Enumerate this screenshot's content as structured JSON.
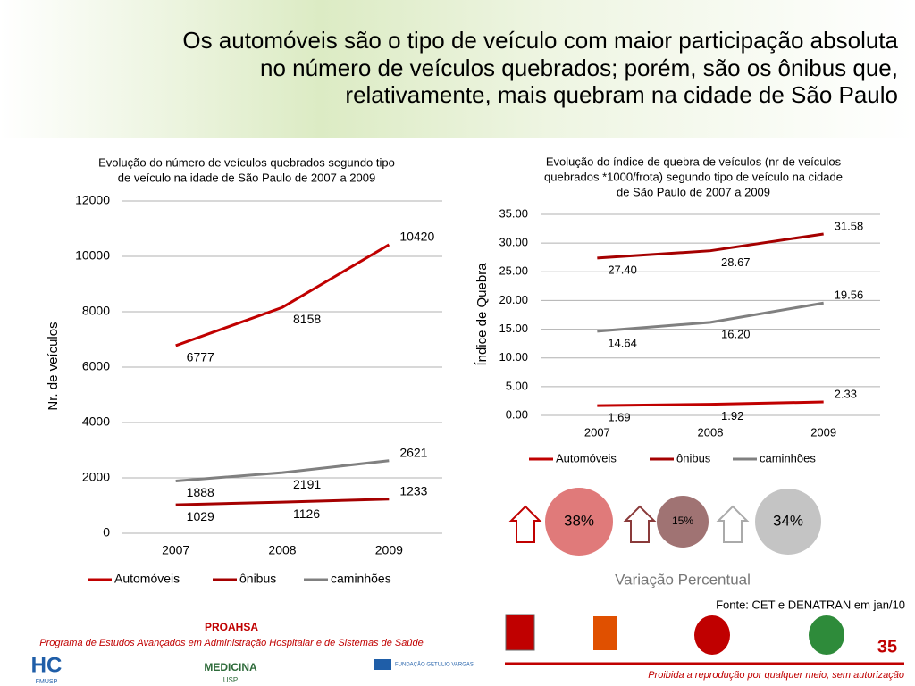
{
  "header": {
    "title": [
      "Os automóveis são o tipo de veículo com maior participação absoluta",
      "no número de veículos quebrados; porém, são os ônibus que,",
      "relativamente, mais quebram na cidade de São Paulo"
    ]
  },
  "chart_data": [
    {
      "type": "line",
      "title": [
        "Evolução do número de veículos quebrados segundo tipo",
        "de veículo na idade de São Paulo de 2007 a 2009"
      ],
      "ylabel": "Nr. de veículos",
      "categories": [
        "2007",
        "2008",
        "2009"
      ],
      "series": [
        {
          "name": "Automóveis",
          "color": "#c00000",
          "values": [
            6777,
            8158,
            10420
          ]
        },
        {
          "name": "ônibus",
          "color": "#a50000",
          "values": [
            1029,
            1126,
            1233
          ]
        },
        {
          "name": "caminhões",
          "color": "#808080",
          "values": [
            1888,
            2191,
            2621
          ]
        }
      ],
      "ylim": [
        0,
        12000
      ],
      "yticks": [
        0,
        2000,
        4000,
        6000,
        8000,
        10000,
        12000
      ],
      "grid": true,
      "legend": "bottom"
    },
    {
      "type": "line",
      "title": [
        "Evolução do índice de quebra de veículos (nr de veículos",
        "quebrados *1000/frota) segundo tipo de veículo na cidade",
        "de São Paulo de 2007 a 2009"
      ],
      "ylabel": "Índice de Quebra",
      "categories": [
        "2007",
        "2008",
        "2009"
      ],
      "series": [
        {
          "name": "Automóveis",
          "color": "#c00000",
          "values": [
            1.69,
            1.92,
            2.33
          ],
          "value_labels": [
            "1.69",
            "1.92",
            "2.33"
          ]
        },
        {
          "name": "ônibus",
          "color": "#a50000",
          "values": [
            27.4,
            28.67,
            31.58
          ],
          "value_labels": [
            "27.40",
            "28.67",
            "31.58"
          ]
        },
        {
          "name": "caminhões",
          "color": "#808080",
          "values": [
            14.64,
            16.2,
            19.56
          ],
          "value_labels": [
            "14.64",
            "16.20",
            "19.56"
          ]
        }
      ],
      "ylim": [
        0,
        35
      ],
      "yticks": [
        {
          "value": 0,
          "label": "0.00"
        },
        {
          "value": 5,
          "label": "5.00"
        },
        {
          "value": 10,
          "label": "10.00"
        },
        {
          "value": 15,
          "label": "15.00"
        },
        {
          "value": 20,
          "label": "20.00"
        },
        {
          "value": 25,
          "label": "25.00"
        },
        {
          "value": 30,
          "label": "30.00"
        },
        {
          "value": 35,
          "label": "35.00"
        }
      ],
      "grid": true,
      "legend": "bottom"
    }
  ],
  "variation": {
    "title": "Variação Percentual",
    "items": [
      "38%",
      "15%",
      "34%"
    ]
  },
  "source": "Fonte: CET e DENATRAN em jan/10",
  "footer": {
    "org": "PROAHSA",
    "program": "Programa de Estudos Avançados em Administração Hospitalar e de Sistemas de Saúde",
    "page": "35",
    "notice": "Proibida a reprodução por qualquer meio, sem autorização",
    "logos": [
      "HC",
      "FMUSP",
      "MEDICINA",
      "USP",
      "FUNDAÇÃO GETULIO VARGAS"
    ]
  }
}
